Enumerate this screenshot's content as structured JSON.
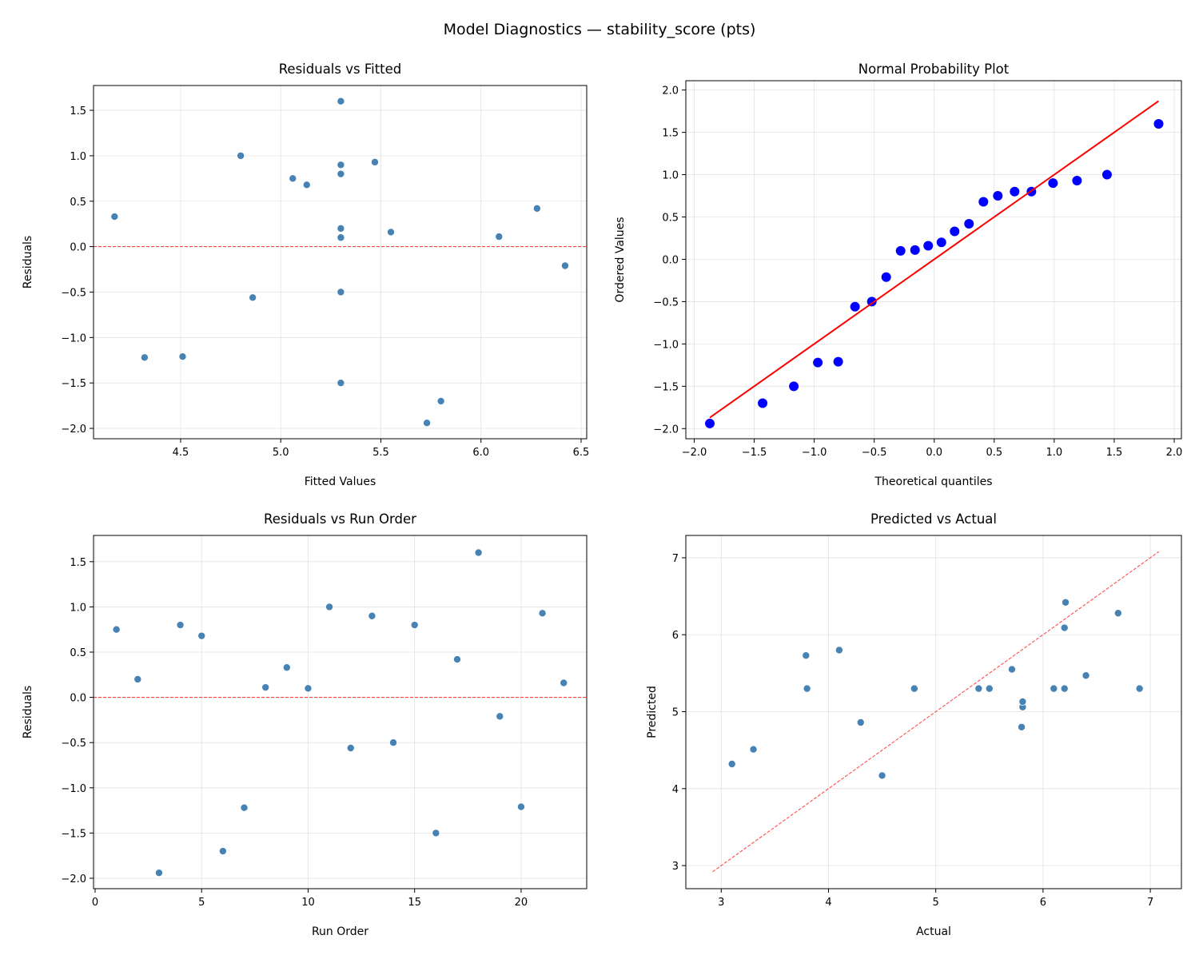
{
  "suptitle": "Model Diagnostics — stability_score (pts)",
  "colors": {
    "points": "#4682b4",
    "probplot_points": "#0000ff",
    "reference": "#ff0000"
  },
  "chart_data": [
    {
      "type": "scatter",
      "title": "Residuals vs Fitted",
      "xlabel": "Fitted Values",
      "ylabel": "Residuals",
      "xlim": [
        4.065,
        6.528
      ],
      "ylim": [
        -2.114,
        1.773
      ],
      "xticks": [
        4.5,
        5.0,
        5.5,
        6.0,
        6.5
      ],
      "yticks": [
        -2.0,
        -1.5,
        -1.0,
        -0.5,
        0.0,
        0.5,
        1.0,
        1.5
      ],
      "grid": true,
      "reference": {
        "kind": "hline",
        "y": 0,
        "style": "dashed"
      },
      "x": [
        5.06,
        5.3,
        5.73,
        5.3,
        5.13,
        5.8,
        4.32,
        6.09,
        4.17,
        5.3,
        4.8,
        4.86,
        5.3,
        5.3,
        5.3,
        5.3,
        6.28,
        5.3,
        6.42,
        4.51,
        5.47,
        5.55
      ],
      "y": [
        0.75,
        0.2,
        -1.94,
        0.8,
        0.68,
        -1.7,
        -1.22,
        0.11,
        0.33,
        0.1,
        1.0,
        -0.56,
        0.9,
        -0.5,
        0.8,
        -1.5,
        0.42,
        1.6,
        -0.21,
        -1.21,
        0.93,
        0.16
      ]
    },
    {
      "type": "scatter",
      "title": "Normal Probability Plot",
      "xlabel": "Theoretical quantiles",
      "ylabel": "Ordered Values",
      "xlim": [
        -2.07,
        2.06
      ],
      "ylim": [
        -2.12,
        2.11
      ],
      "xticks": [
        -2.0,
        -1.5,
        -1.0,
        -0.5,
        0.0,
        0.5,
        1.0,
        1.5,
        2.0
      ],
      "yticks": [
        -2.0,
        -1.5,
        -1.0,
        -0.5,
        0.0,
        0.5,
        1.0,
        1.5,
        2.0
      ],
      "grid": true,
      "reference": {
        "kind": "fit-line",
        "slope": 1.0,
        "intercept": 0.0,
        "x_range": [
          -1.87,
          1.87
        ],
        "style": "solid"
      },
      "x": [
        -1.87,
        -1.43,
        -1.17,
        -0.97,
        -0.8,
        -0.66,
        -0.52,
        -0.4,
        -0.28,
        -0.16,
        -0.05,
        0.06,
        0.17,
        0.29,
        0.41,
        0.53,
        0.67,
        0.81,
        0.99,
        1.19,
        1.44,
        1.87
      ],
      "y": [
        -1.94,
        -1.7,
        -1.5,
        -1.22,
        -1.21,
        -0.56,
        -0.5,
        -0.21,
        0.1,
        0.11,
        0.16,
        0.2,
        0.33,
        0.42,
        0.68,
        0.75,
        0.8,
        0.8,
        0.9,
        0.93,
        1.0,
        1.6
      ]
    },
    {
      "type": "scatter",
      "title": "Residuals vs Run Order",
      "xlabel": "Run Order",
      "ylabel": "Residuals",
      "xlim": [
        -0.075,
        23.08
      ],
      "ylim": [
        -2.115,
        1.79
      ],
      "xticks": [
        0,
        5,
        10,
        15,
        20
      ],
      "yticks": [
        -2.0,
        -1.5,
        -1.0,
        -0.5,
        0.0,
        0.5,
        1.0,
        1.5
      ],
      "grid": true,
      "reference": {
        "kind": "hline",
        "y": 0,
        "style": "dashed"
      },
      "x": [
        1,
        2,
        3,
        4,
        5,
        6,
        7,
        8,
        9,
        10,
        11,
        12,
        13,
        14,
        15,
        16,
        17,
        18,
        19,
        20,
        21,
        22
      ],
      "y": [
        0.75,
        0.2,
        -1.94,
        0.8,
        0.68,
        -1.7,
        -1.22,
        0.11,
        0.33,
        0.1,
        1.0,
        -0.56,
        0.9,
        -0.5,
        0.8,
        -1.5,
        0.42,
        1.6,
        -0.21,
        -1.21,
        0.93,
        0.16
      ]
    },
    {
      "type": "scatter",
      "title": "Predicted vs Actual",
      "xlabel": "Actual",
      "ylabel": "Predicted",
      "xlim": [
        2.67,
        7.29
      ],
      "ylim": [
        2.7,
        7.29
      ],
      "xticks": [
        3,
        4,
        5,
        6,
        7
      ],
      "yticks": [
        3,
        4,
        5,
        6,
        7
      ],
      "grid": true,
      "reference": {
        "kind": "identity",
        "x_range": [
          2.92,
          7.08
        ],
        "style": "dashed"
      },
      "x": [
        5.81,
        5.5,
        3.79,
        6.1,
        5.81,
        4.1,
        3.1,
        6.2,
        4.5,
        5.4,
        5.8,
        4.3,
        6.2,
        4.8,
        6.1,
        3.8,
        6.7,
        6.9,
        6.21,
        3.3,
        6.4,
        5.71
      ],
      "y": [
        5.06,
        5.3,
        5.73,
        5.3,
        5.13,
        5.8,
        4.32,
        6.09,
        4.17,
        5.3,
        4.8,
        4.86,
        5.3,
        5.3,
        5.3,
        5.3,
        6.28,
        5.3,
        6.42,
        4.51,
        5.47,
        5.55
      ]
    }
  ]
}
